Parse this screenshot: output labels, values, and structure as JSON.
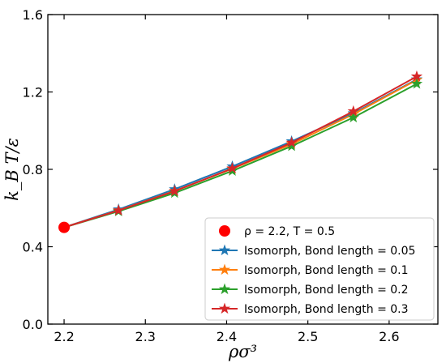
{
  "chart_data": {
    "type": "line",
    "xlabel": "ρσ³",
    "ylabel": "k_B T/ε",
    "xlim": [
      2.18,
      2.66
    ],
    "ylim": [
      0.0,
      1.6
    ],
    "xticks": [
      2.2,
      2.3,
      2.4,
      2.5,
      2.6
    ],
    "xtick_labels": [
      "2.2",
      "2.3",
      "2.4",
      "2.5",
      "2.6"
    ],
    "yticks": [
      0.0,
      0.4,
      0.8,
      1.2,
      1.6
    ],
    "ytick_labels": [
      "0.0",
      "0.4",
      "0.8",
      "1.2",
      "1.6"
    ],
    "grid": false,
    "legend_position": "bottom-right",
    "reference_point": {
      "label": "ρ = 2.2, T = 0.5",
      "x": 2.2,
      "y": 0.5,
      "color": "#ff0000",
      "marker": "circle"
    },
    "x": [
      2.2,
      2.267,
      2.336,
      2.407,
      2.48,
      2.556,
      2.634
    ],
    "series": [
      {
        "name": "Isomorph, Bond length = 0.05",
        "color": "#1f77b4",
        "values": [
          0.5,
          0.593,
          0.697,
          0.815,
          0.945,
          1.09,
          1.265
        ]
      },
      {
        "name": "Isomorph, Bond length = 0.1",
        "color": "#ff7f0e",
        "values": [
          0.5,
          0.588,
          0.688,
          0.803,
          0.93,
          1.085,
          1.262
        ]
      },
      {
        "name": "Isomorph, Bond length = 0.2",
        "color": "#2ca02c",
        "values": [
          0.5,
          0.583,
          0.678,
          0.792,
          0.92,
          1.068,
          1.242
        ]
      },
      {
        "name": "Isomorph, Bond length = 0.3",
        "color": "#d62728",
        "values": [
          0.5,
          0.587,
          0.687,
          0.805,
          0.938,
          1.1,
          1.28
        ]
      }
    ]
  }
}
